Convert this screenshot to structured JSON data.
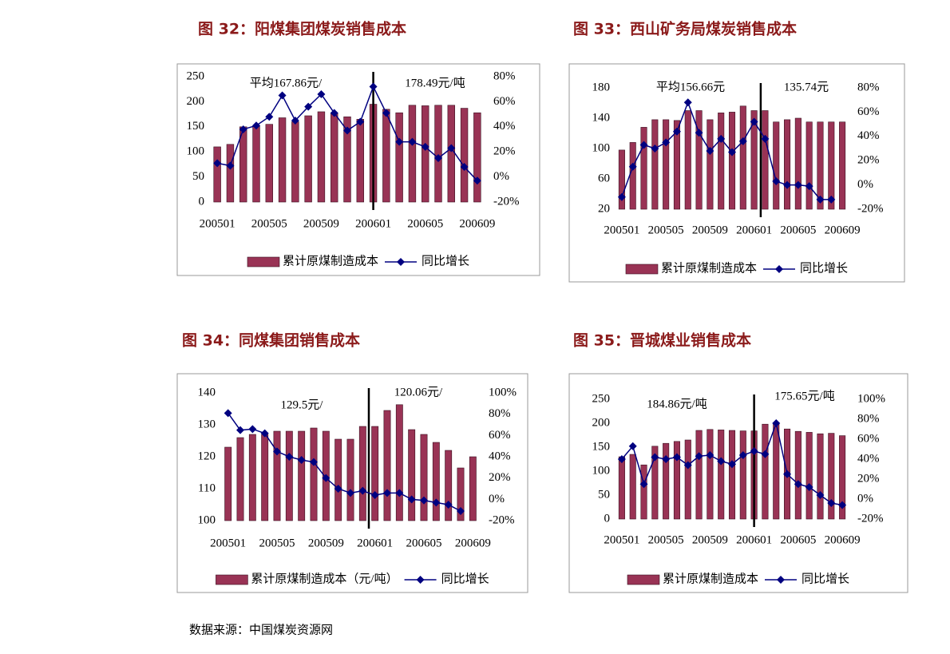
{
  "chart_data": [
    {
      "type": "bar",
      "title": "图 32：阳煤集团煤炭销售成本",
      "categories": [
        "200501",
        null,
        null,
        null,
        "200505",
        null,
        null,
        null,
        "200509",
        null,
        null,
        null,
        "200601",
        null,
        null,
        null,
        "200605",
        null,
        null,
        null,
        "200609"
      ],
      "series": [
        {
          "name": "累计原煤制造成本",
          "color": "#993355",
          "axis": "y",
          "values": [
            110,
            115,
            150,
            152,
            155,
            168,
            160,
            172,
            180,
            178,
            170,
            165,
            195,
            185,
            178,
            193,
            192,
            193,
            193,
            187,
            178
          ]
        },
        {
          "name": "同比增长",
          "color": "#000080",
          "axis": "y2",
          "values": [
            11,
            9,
            38,
            41,
            48,
            65,
            45,
            56,
            66,
            51,
            37,
            44,
            72,
            51,
            28,
            28,
            24,
            15,
            23,
            8,
            -3
          ]
        }
      ],
      "ylim": [
        0,
        250
      ],
      "yticks": [
        0,
        50,
        100,
        150,
        200,
        250
      ],
      "y2lim": [
        -20,
        80
      ],
      "y2ticks": [
        {
          "value": -20,
          "label": "-20%"
        },
        {
          "value": 0,
          "label": "0%"
        },
        {
          "value": 20,
          "label": "20%"
        },
        {
          "value": 40,
          "label": "40%"
        },
        {
          "value": 60,
          "label": "60%"
        },
        {
          "value": 80,
          "label": "80%"
        }
      ],
      "annotations": [
        "平均167.86元/",
        "178.49元/吨"
      ],
      "legend": "bottom"
    },
    {
      "type": "bar",
      "title": "图 33：西山矿务局煤炭销售成本",
      "categories": [
        "200501",
        null,
        null,
        null,
        "200505",
        null,
        null,
        null,
        "200509",
        null,
        null,
        null,
        "200601",
        null,
        null,
        null,
        "200605",
        null,
        null,
        null,
        "200609"
      ],
      "series": [
        {
          "name": "累计原煤制造成本",
          "color": "#993355",
          "axis": "y",
          "values": [
            98,
            108,
            128,
            138,
            138,
            137,
            150,
            150,
            138,
            147,
            148,
            156,
            150,
            150,
            135,
            138,
            140,
            135,
            135,
            135,
            135
          ]
        },
        {
          "name": "同比增长",
          "color": "#000080",
          "axis": "y2",
          "values": [
            -10,
            15,
            33,
            30,
            35,
            44,
            68,
            43,
            28,
            38,
            27,
            36,
            52,
            38,
            3,
            0,
            0,
            -1,
            -12,
            -12,
            null
          ]
        }
      ],
      "ylim": [
        20,
        180
      ],
      "yticks": [
        20,
        60,
        100,
        140,
        180
      ],
      "y2lim": [
        -20,
        80
      ],
      "y2ticks": [
        {
          "value": -20,
          "label": "-20%"
        },
        {
          "value": 0,
          "label": "0%"
        },
        {
          "value": 20,
          "label": "20%"
        },
        {
          "value": 40,
          "label": "40%"
        },
        {
          "value": 60,
          "label": "60%"
        },
        {
          "value": 80,
          "label": "80%"
        }
      ],
      "annotations": [
        "平均156.66元",
        "135.74元"
      ],
      "legend": "bottom"
    },
    {
      "type": "bar",
      "title": "图 34：同煤集团销售成本",
      "categories": [
        "200501",
        null,
        null,
        null,
        "200505",
        null,
        null,
        null,
        "200509",
        null,
        null,
        null,
        "200601",
        null,
        null,
        null,
        "200605",
        null,
        null,
        null,
        "200609"
      ],
      "series": [
        {
          "name": "累计原煤制造成本（元/吨）",
          "color": "#993355",
          "axis": "y",
          "values": [
            123,
            126,
            127,
            127,
            128,
            128,
            128,
            129,
            128,
            125.5,
            125.5,
            129.5,
            129.5,
            134.5,
            136.3,
            128.5,
            127,
            124.5,
            122,
            116.5,
            120
          ]
        },
        {
          "name": "同比增长",
          "color": "#000080",
          "axis": "y2",
          "values": [
            81,
            65,
            66,
            62,
            45,
            40,
            37,
            35,
            20,
            10,
            6,
            8,
            4,
            6,
            6,
            0,
            -1,
            -3,
            -5,
            -11,
            null
          ]
        }
      ],
      "ylim": [
        100,
        140
      ],
      "yticks": [
        100,
        110,
        120,
        130,
        140
      ],
      "y2lim": [
        -20,
        100
      ],
      "y2ticks": [
        {
          "value": -20,
          "label": "-20%"
        },
        {
          "value": 0,
          "label": "0%"
        },
        {
          "value": 20,
          "label": "20%"
        },
        {
          "value": 40,
          "label": "40%"
        },
        {
          "value": 60,
          "label": "60%"
        },
        {
          "value": 80,
          "label": "80%"
        },
        {
          "value": 100,
          "label": "100%"
        }
      ],
      "annotations": [
        "129.5元/",
        "120.06元/"
      ],
      "legend": "bottom"
    },
    {
      "type": "bar",
      "title": "图 35：晋城煤业销售成本",
      "categories": [
        "200501",
        null,
        null,
        null,
        "200505",
        null,
        null,
        null,
        "200509",
        null,
        null,
        null,
        "200601",
        null,
        null,
        null,
        "200605",
        null,
        null,
        null,
        "200609"
      ],
      "series": [
        {
          "name": "累计原煤制造成本",
          "color": "#993355",
          "axis": "y",
          "values": [
            130,
            135,
            113,
            152,
            158,
            162,
            165,
            185,
            187,
            186,
            185,
            184,
            184,
            198,
            200,
            188,
            183,
            181,
            178,
            179,
            174
          ]
        },
        {
          "name": "同比增长",
          "color": "#000080",
          "axis": "y2",
          "values": [
            40,
            53,
            15,
            42,
            40,
            42,
            34,
            43,
            44,
            38,
            35,
            44,
            48,
            45,
            76,
            25,
            15,
            12,
            4,
            -4,
            -6
          ]
        }
      ],
      "ylim": [
        0,
        250
      ],
      "yticks": [
        0,
        50,
        100,
        150,
        200,
        250
      ],
      "y2lim": [
        -20,
        100
      ],
      "y2ticks": [
        {
          "value": -20,
          "label": "-20%"
        },
        {
          "value": 0,
          "label": "0%"
        },
        {
          "value": 20,
          "label": "20%"
        },
        {
          "value": 40,
          "label": "40%"
        },
        {
          "value": 60,
          "label": "60%"
        },
        {
          "value": 80,
          "label": "80%"
        },
        {
          "value": 100,
          "label": "100%"
        }
      ],
      "annotations": [
        "184.86元/吨",
        "175.65元/吨"
      ],
      "legend": "bottom"
    }
  ],
  "source": "数据来源：中国煤炭资源网"
}
